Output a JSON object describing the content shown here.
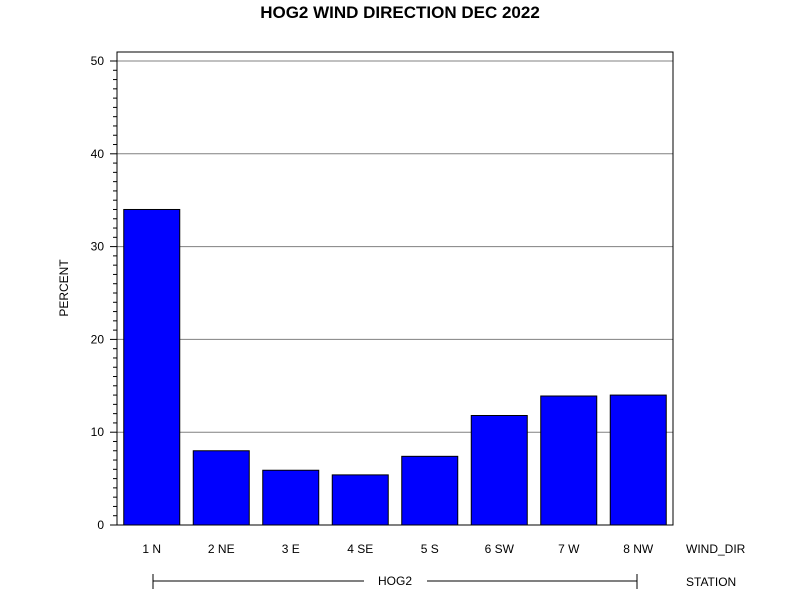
{
  "chart_data": {
    "type": "bar",
    "title": "HOG2 WIND DIRECTION DEC 2022",
    "ylabel": "PERCENT",
    "xlabel": "WIND_DIR",
    "group_axis_label": "STATION",
    "group_label": "HOG2",
    "categories": [
      "1 N",
      "2 NE",
      "3 E",
      "4 SE",
      "5 S",
      "6 SW",
      "7 W",
      "8 NW"
    ],
    "values": [
      34.0,
      8.0,
      5.9,
      5.4,
      7.4,
      11.8,
      13.9,
      14.0
    ],
    "ylim": [
      0,
      50
    ],
    "yticks": [
      0,
      10,
      20,
      30,
      40,
      50
    ],
    "yminor_step": 1,
    "grid": true,
    "bar_color": "#0000FF",
    "grid_color": "#808080"
  }
}
